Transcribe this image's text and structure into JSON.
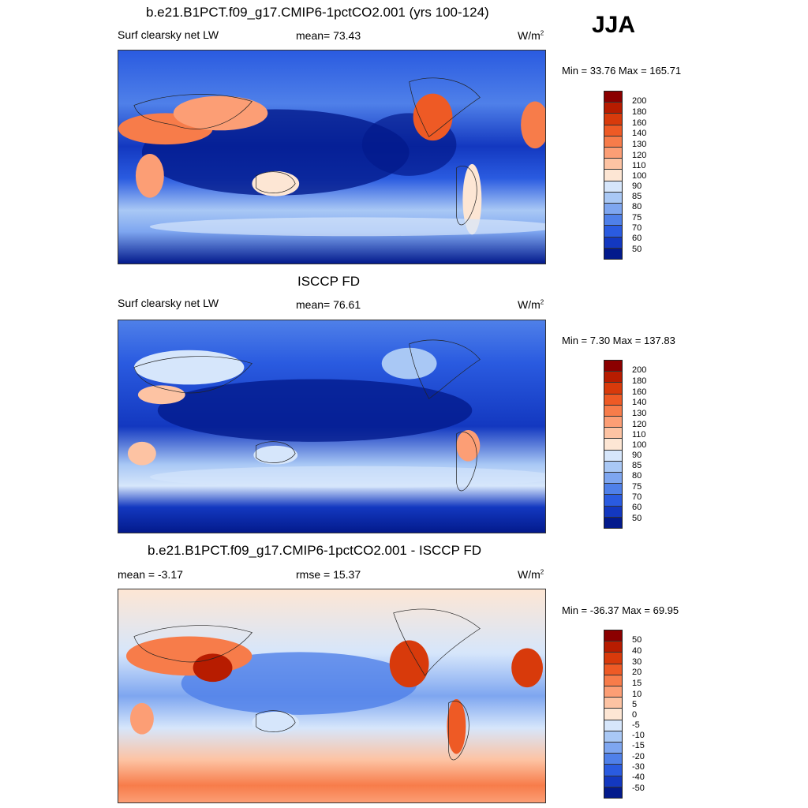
{
  "season": "JJA",
  "panels": [
    {
      "title": "b.e21.B1PCT.f09_g17.CMIP6-1pctCO2.001 (yrs 100-124)",
      "left_label": "Surf clearsky net LW",
      "center_label": "mean=  73.43",
      "units_base": "W/m",
      "units_exp": "2",
      "minmax": "Min =  33.76 Max = 165.71",
      "colorbar": {
        "levels": [
          "200",
          "180",
          "160",
          "140",
          "130",
          "120",
          "110",
          "100",
          "90",
          "85",
          "80",
          "75",
          "70",
          "60",
          "50"
        ],
        "colors": [
          "#8b0000",
          "#b71c00",
          "#d83a0b",
          "#ee5a25",
          "#f77c4a",
          "#fc9e75",
          "#fdc3a3",
          "#fde6d4",
          "#d6e6fb",
          "#a9c8f5",
          "#7ea6f0",
          "#4f80e9",
          "#2a5be0",
          "#1338c0",
          "#031a8c"
        ]
      },
      "chart_data": {
        "type": "heatmap",
        "title": "b.e21.B1PCT.f09_g17.CMIP6-1pctCO2.001 (yrs 100-124)",
        "variable": "Surf clearsky net LW",
        "units": "W/m2",
        "mean": 73.43,
        "min": 33.76,
        "max": 165.71,
        "contour_levels": [
          50,
          60,
          70,
          75,
          80,
          85,
          90,
          100,
          110,
          120,
          130,
          140,
          160,
          180,
          200
        ]
      }
    },
    {
      "title": "ISCCP FD",
      "left_label": "Surf clearsky net LW",
      "center_label": "mean=  76.61",
      "units_base": "W/m",
      "units_exp": "2",
      "minmax": "Min =   7.30 Max = 137.83",
      "colorbar": {
        "levels": [
          "200",
          "180",
          "160",
          "140",
          "130",
          "120",
          "110",
          "100",
          "90",
          "85",
          "80",
          "75",
          "70",
          "60",
          "50"
        ],
        "colors": [
          "#8b0000",
          "#b71c00",
          "#d83a0b",
          "#ee5a25",
          "#f77c4a",
          "#fc9e75",
          "#fdc3a3",
          "#fde6d4",
          "#d6e6fb",
          "#a9c8f5",
          "#7ea6f0",
          "#4f80e9",
          "#2a5be0",
          "#1338c0",
          "#031a8c"
        ]
      },
      "chart_data": {
        "type": "heatmap",
        "title": "ISCCP FD",
        "variable": "Surf clearsky net LW",
        "units": "W/m2",
        "mean": 76.61,
        "min": 7.3,
        "max": 137.83,
        "contour_levels": [
          50,
          60,
          70,
          75,
          80,
          85,
          90,
          100,
          110,
          120,
          130,
          140,
          160,
          180,
          200
        ]
      }
    },
    {
      "title": "b.e21.B1PCT.f09_g17.CMIP6-1pctCO2.001 - ISCCP FD",
      "left_label": "mean =  -3.17",
      "center_label": "rmse =  15.37",
      "units_base": "W/m",
      "units_exp": "2",
      "minmax": "Min = -36.37 Max =  69.95",
      "colorbar": {
        "levels": [
          "50",
          "40",
          "30",
          "20",
          "15",
          "10",
          "5",
          "0",
          "-5",
          "-10",
          "-15",
          "-20",
          "-30",
          "-40",
          "-50"
        ],
        "colors": [
          "#8b0000",
          "#b71c00",
          "#d83a0b",
          "#ee5a25",
          "#f77c4a",
          "#fc9e75",
          "#fdc3a3",
          "#fde6d4",
          "#d6e6fb",
          "#a9c8f5",
          "#7ea6f0",
          "#4f80e9",
          "#2a5be0",
          "#1338c0",
          "#031a8c"
        ]
      },
      "chart_data": {
        "type": "heatmap",
        "title": "b.e21.B1PCT.f09_g17.CMIP6-1pctCO2.001 - ISCCP FD",
        "variable": "Surf clearsky net LW difference",
        "units": "W/m2",
        "mean": -3.17,
        "rmse": 15.37,
        "min": -36.37,
        "max": 69.95,
        "contour_levels": [
          -50,
          -40,
          -30,
          -20,
          -15,
          -10,
          -5,
          0,
          5,
          10,
          15,
          20,
          30,
          40,
          50
        ]
      }
    }
  ]
}
